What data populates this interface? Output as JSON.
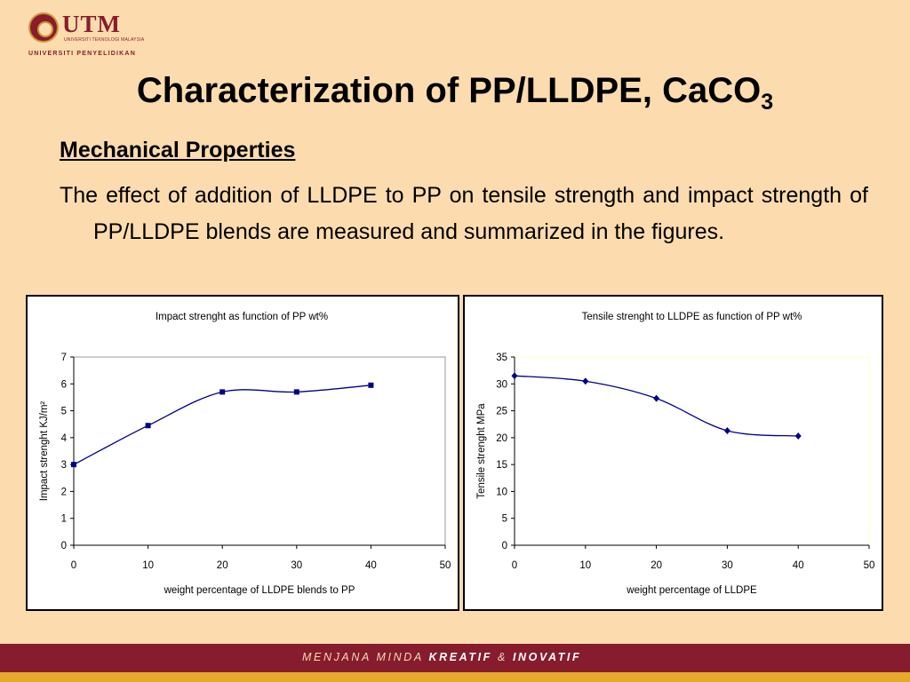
{
  "logo": {
    "name": "UTM",
    "small_line": "UNIVERSITI TEKNOLOGI MALAYSIA",
    "tagline": "UNIVERSITI PENYELIDIKAN"
  },
  "slide": {
    "title_main": "Characterization of PP/LLDPE, CaCO",
    "title_sub": "3",
    "subheading": "Mechanical Properties",
    "paragraph": "The effect of addition of LLDPE to PP on tensile strength and impact strength of PP/LLDPE blends are measured and summarized in the figures."
  },
  "footer": {
    "prefix": "MENJANA MINDA",
    "bold1": "KREATIF",
    "amp": "&",
    "bold2": "INOVATIF"
  },
  "colors": {
    "background": "#fcdcae",
    "maroon": "#861c2d",
    "gold": "#e5a92c",
    "series": "#00008b"
  },
  "chart_data": [
    {
      "type": "line",
      "title": "Impact strenght as function of PP wt%",
      "xlabel": "weight percentage of LLDPE blends to PP",
      "ylabel": "Impact strenght KJ/m²",
      "x": [
        0,
        10,
        20,
        30,
        40
      ],
      "values": [
        3.0,
        4.45,
        5.7,
        5.7,
        5.95
      ],
      "xlim": [
        0,
        50
      ],
      "ylim": [
        0,
        7
      ],
      "xticks": [
        0,
        10,
        20,
        30,
        40,
        50
      ],
      "yticks": [
        0,
        1,
        2,
        3,
        4,
        5,
        6,
        7
      ],
      "marker": "square",
      "plot_background": "#ffffff",
      "legend": "none"
    },
    {
      "type": "line",
      "title": "Tensile strenght to LLDPE as function of PP wt%",
      "xlabel": "weight percentage of LLDPE",
      "ylabel": "Tensile strenght MPa",
      "x": [
        0,
        10,
        20,
        30,
        40
      ],
      "values": [
        31.5,
        30.5,
        27.3,
        21.3,
        20.3
      ],
      "xlim": [
        0,
        50
      ],
      "ylim": [
        0,
        35
      ],
      "xticks": [
        0,
        10,
        20,
        30,
        40,
        50
      ],
      "yticks": [
        0,
        5,
        10,
        15,
        20,
        25,
        30,
        35
      ],
      "marker": "diamond",
      "plot_background": "#ffffff",
      "legend": "none"
    }
  ]
}
